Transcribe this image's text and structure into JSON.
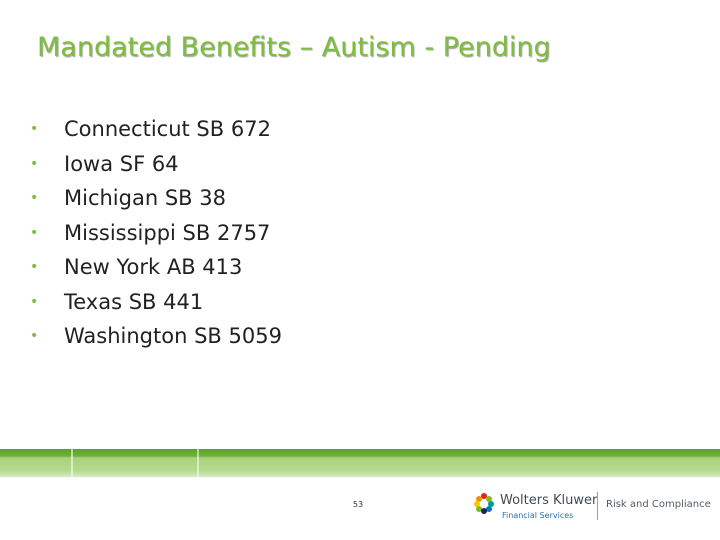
{
  "slide": {
    "title": "Mandated Benefits – Autism - Pending",
    "items": [
      {
        "label": "Connecticut SB 672"
      },
      {
        "label": "Iowa SF 64"
      },
      {
        "label": "Michigan SB 38"
      },
      {
        "label": "Mississippi SB 2757"
      },
      {
        "label": "New York AB 413"
      },
      {
        "label": "Texas SB 441"
      },
      {
        "label": "Washington SB 5059"
      }
    ],
    "bullet_glyph": "•"
  },
  "footer": {
    "page_number": "53",
    "logo": {
      "company": "Wolters Kluwer",
      "sub": "Financial Services",
      "division": "Risk and Compliance",
      "icon": "wolters-kluwer-logo-icon"
    }
  },
  "colors": {
    "accent": "#7cbf3a",
    "band": "#6db33a",
    "text": "#222222",
    "logo_blue": "#2a6fb0"
  }
}
